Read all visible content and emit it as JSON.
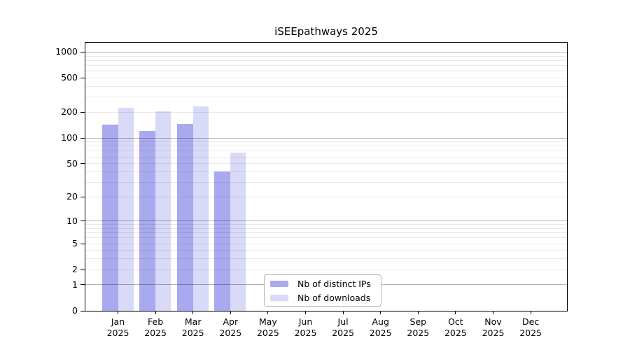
{
  "chart_data": {
    "type": "bar",
    "title": "iSEEpathways 2025",
    "categories": [
      "Jan",
      "Feb",
      "Mar",
      "Apr",
      "May",
      "Jun",
      "Jul",
      "Aug",
      "Sep",
      "Oct",
      "Nov",
      "Dec"
    ],
    "category_year": "2025",
    "series": [
      {
        "name": "Nb of distinct IPs",
        "color": "#a9a9ef",
        "values": [
          143,
          122,
          147,
          40,
          0,
          0,
          0,
          0,
          0,
          0,
          0,
          0
        ]
      },
      {
        "name": "Nb of downloads",
        "color": "#d9d9f8",
        "values": [
          224,
          205,
          236,
          67,
          0,
          0,
          0,
          0,
          0,
          0,
          0,
          0
        ]
      }
    ],
    "yscale": "log1p",
    "ylim": [
      0,
      1290
    ],
    "yticks": [
      0,
      1,
      2,
      5,
      10,
      20,
      50,
      100,
      200,
      500,
      1000
    ],
    "major_gridlines": [
      1,
      10,
      100,
      1000
    ],
    "minor_gridlines": [
      2,
      3,
      4,
      5,
      6,
      7,
      8,
      9,
      20,
      30,
      40,
      50,
      60,
      70,
      80,
      90,
      200,
      300,
      400,
      500,
      600,
      700,
      800,
      900
    ],
    "grid": true,
    "legend_position": "lower center"
  }
}
